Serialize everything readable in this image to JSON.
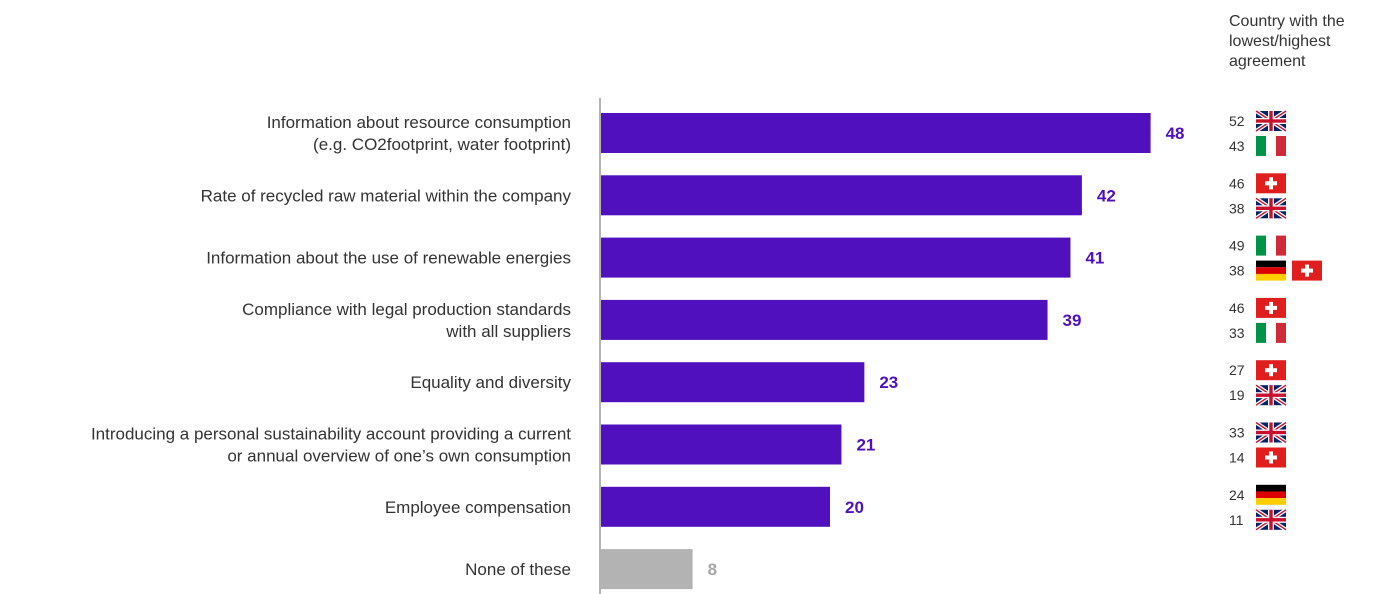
{
  "legend_title": [
    "Country with the",
    "lowest/highest",
    "agreement"
  ],
  "colors": {
    "bar": "#5010BE",
    "none_bar": "#B3B3B3",
    "none_label": "#A6A6A6",
    "axis": "#B3B3B3"
  },
  "chart_data": {
    "type": "bar",
    "orientation": "horizontal",
    "xlim": [
      0,
      50
    ],
    "categories": [
      [
        "Information about resource consumption",
        "(e.g. CO2footprint, water footprint)"
      ],
      [
        "Rate of recycled raw material within the company"
      ],
      [
        "Information about the use of renewable energies"
      ],
      [
        "Compliance with legal production standards",
        "with all suppliers"
      ],
      [
        "Equality and diversity"
      ],
      [
        "Introducing a personal sustainability account providing a current",
        "or annual overview of one’s own consumption"
      ],
      [
        "Employee compensation"
      ],
      [
        "None of these"
      ]
    ],
    "values": [
      48,
      42,
      41,
      39,
      23,
      21,
      20,
      8
    ],
    "highlight": [
      false,
      false,
      false,
      false,
      false,
      false,
      false,
      true
    ],
    "country_extremes": [
      {
        "high": {
          "value": "52",
          "flags": [
            "uk-flag-icon"
          ]
        },
        "low": {
          "value": "43",
          "flags": [
            "italy-flag-icon"
          ]
        }
      },
      {
        "high": {
          "value": "46",
          "flags": [
            "switzerland-flag-icon"
          ]
        },
        "low": {
          "value": "38",
          "flags": [
            "uk-flag-icon"
          ]
        }
      },
      {
        "high": {
          "value": "49",
          "flags": [
            "italy-flag-icon"
          ]
        },
        "low": {
          "value": "38",
          "flags": [
            "germany-flag-icon",
            "switzerland-flag-icon"
          ]
        }
      },
      {
        "high": {
          "value": "46",
          "flags": [
            "switzerland-flag-icon"
          ]
        },
        "low": {
          "value": "33",
          "flags": [
            "italy-flag-icon"
          ]
        }
      },
      {
        "high": {
          "value": "27",
          "flags": [
            "switzerland-flag-icon"
          ]
        },
        "low": {
          "value": "19",
          "flags": [
            "uk-flag-icon"
          ]
        }
      },
      {
        "high": {
          "value": "33",
          "flags": [
            "uk-flag-icon"
          ]
        },
        "low": {
          "value": "14",
          "flags": [
            "switzerland-flag-icon"
          ]
        }
      },
      {
        "high": {
          "value": "24",
          "flags": [
            "germany-flag-icon"
          ]
        },
        "low": {
          "value": "11",
          "flags": [
            "uk-flag-icon"
          ]
        }
      }
    ]
  }
}
